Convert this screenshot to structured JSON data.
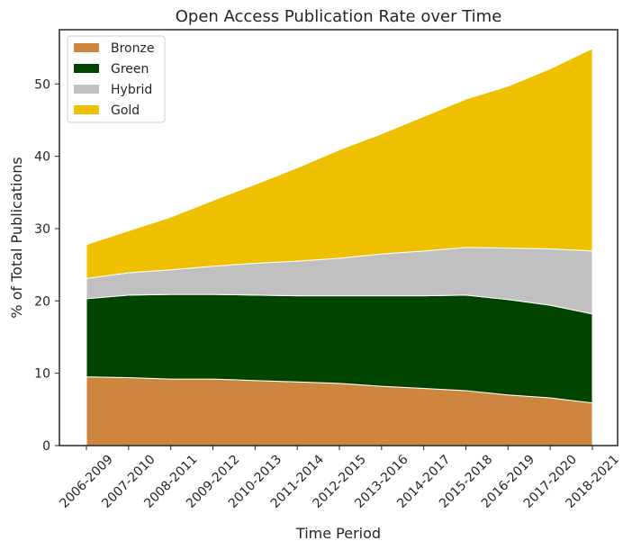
{
  "chart_data": {
    "type": "area",
    "stacked": true,
    "title": "Open Access Publication Rate over Time",
    "xlabel": "Time Period",
    "ylabel": "% of Total Publications",
    "categories": [
      "2006-2009",
      "2007-2010",
      "2008-2011",
      "2009-2012",
      "2010-2013",
      "2011-2014",
      "2012-2015",
      "2013-2016",
      "2014-2017",
      "2015-2018",
      "2016-2019",
      "2017-2020",
      "2018-2021"
    ],
    "ylim": [
      0,
      57.5
    ],
    "yticks": [
      0,
      10,
      20,
      30,
      40,
      50
    ],
    "grid": false,
    "legend_position": "top-left",
    "series": [
      {
        "name": "Bronze",
        "color": "#CD853F",
        "values": [
          9.5,
          9.4,
          9.2,
          9.2,
          9.0,
          8.8,
          8.6,
          8.2,
          7.9,
          7.6,
          7.0,
          6.6,
          5.9
        ]
      },
      {
        "name": "Green",
        "color": "#004400",
        "values": [
          10.8,
          11.4,
          11.7,
          11.7,
          11.8,
          11.9,
          12.1,
          12.5,
          12.8,
          13.2,
          13.2,
          12.8,
          12.3
        ]
      },
      {
        "name": "Hybrid",
        "color": "#C0C0C0",
        "values": [
          2.8,
          3.1,
          3.4,
          3.9,
          4.4,
          4.8,
          5.2,
          5.8,
          6.2,
          6.6,
          7.1,
          7.8,
          8.7
        ]
      },
      {
        "name": "Gold",
        "color": "#EEC000",
        "values": [
          4.7,
          5.8,
          7.3,
          9.1,
          10.9,
          12.9,
          15.0,
          16.6,
          18.6,
          20.5,
          22.4,
          24.9,
          28.0
        ]
      }
    ]
  }
}
